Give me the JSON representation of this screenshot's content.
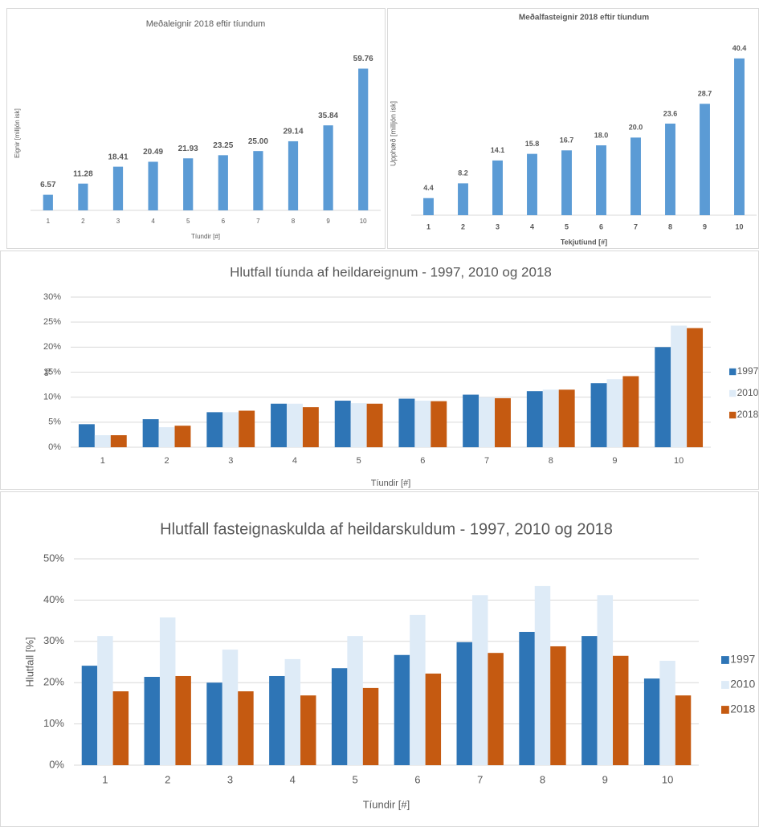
{
  "chart_data": [
    {
      "type": "bar",
      "title": "Meðaleignir 2018 eftir tíundum",
      "y_label": "Eignir [milljón isk]",
      "x_label": "Tíundir [#]",
      "categories": [
        "1",
        "2",
        "3",
        "4",
        "5",
        "6",
        "7",
        "8",
        "9",
        "10"
      ],
      "values": [
        6.57,
        11.28,
        18.41,
        20.49,
        21.93,
        23.25,
        25.0,
        29.14,
        35.84,
        59.76
      ],
      "value_labels": [
        "6.57",
        "11.28",
        "18.41",
        "20.49",
        "21.93",
        "23.25",
        "25.00",
        "29.14",
        "35.84",
        "59.76"
      ],
      "color": "#5b9bd5",
      "ylim": [
        0,
        65
      ],
      "grid": false
    },
    {
      "type": "bar",
      "title": "Meðalfasteignir 2018 eftir tíundum",
      "y_label": "Upphæð [milljón isk]",
      "x_label": "Tekjutíund [#]",
      "categories": [
        "1",
        "2",
        "3",
        "4",
        "5",
        "6",
        "7",
        "8",
        "9",
        "10"
      ],
      "values": [
        4.4,
        8.2,
        14.1,
        15.8,
        16.7,
        18.0,
        20.0,
        23.6,
        28.7,
        40.4
      ],
      "value_labels": [
        "4.4",
        "8.2",
        "14.1",
        "15.8",
        "16.7",
        "18.0",
        "20.0",
        "23.6",
        "28.7",
        "40.4"
      ],
      "color": "#5b9bd5",
      "ylim": [
        0,
        42
      ],
      "grid": false
    },
    {
      "type": "bar",
      "title": "Hlutfall tíunda af heildareignum - 1997, 2010 og 2018",
      "y_label": "%",
      "x_label": "Tíundir [#]",
      "categories": [
        "1",
        "2",
        "3",
        "4",
        "5",
        "6",
        "7",
        "8",
        "9",
        "10"
      ],
      "series": [
        {
          "name": "1997",
          "color": "#2e75b6",
          "values": [
            4.6,
            5.6,
            7.0,
            8.7,
            9.3,
            9.7,
            10.5,
            11.2,
            12.8,
            20.0
          ]
        },
        {
          "name": "2010",
          "color": "#deebf7",
          "values": [
            2.4,
            4.0,
            7.0,
            8.7,
            8.8,
            9.3,
            10.0,
            11.5,
            13.6,
            24.3
          ]
        },
        {
          "name": "2018",
          "color": "#c55a11",
          "values": [
            2.4,
            4.3,
            7.3,
            8.0,
            8.7,
            9.2,
            9.8,
            11.5,
            14.2,
            23.8
          ]
        }
      ],
      "ylim": [
        0,
        30
      ],
      "yticks": [
        {
          "value": 0,
          "label": "0%"
        },
        {
          "value": 5,
          "label": "5%"
        },
        {
          "value": 10,
          "label": "10%"
        },
        {
          "value": 15,
          "label": "15%"
        },
        {
          "value": 20,
          "label": "20%"
        },
        {
          "value": 25,
          "label": "25%"
        },
        {
          "value": 30,
          "label": "30%"
        }
      ],
      "grid": true,
      "legend": "right"
    },
    {
      "type": "bar",
      "title": "Hlutfall fasteignaskulda af heildarskuldum - 1997, 2010 og 2018",
      "y_label": "Hlutfall [%]",
      "x_label": "Tíundir [#]",
      "categories": [
        "1",
        "2",
        "3",
        "4",
        "5",
        "6",
        "7",
        "8",
        "9",
        "10"
      ],
      "series": [
        {
          "name": "1997",
          "color": "#2e75b6",
          "values": [
            24.1,
            21.4,
            20.0,
            21.6,
            23.5,
            26.7,
            29.8,
            32.3,
            31.3,
            21.0
          ]
        },
        {
          "name": "2010",
          "color": "#deebf7",
          "values": [
            31.3,
            35.8,
            28.0,
            25.7,
            31.3,
            36.4,
            41.2,
            43.4,
            41.2,
            25.3
          ]
        },
        {
          "name": "2018",
          "color": "#c55a11",
          "values": [
            17.9,
            21.6,
            17.9,
            16.9,
            18.7,
            22.2,
            27.2,
            28.8,
            26.5,
            16.9
          ]
        }
      ],
      "ylim": [
        0,
        50
      ],
      "yticks": [
        {
          "value": 0,
          "label": "0%"
        },
        {
          "value": 10,
          "label": "10%"
        },
        {
          "value": 20,
          "label": "20%"
        },
        {
          "value": 30,
          "label": "30%"
        },
        {
          "value": 40,
          "label": "40%"
        },
        {
          "value": 50,
          "label": "50%"
        }
      ],
      "grid": true,
      "legend": "right"
    }
  ]
}
